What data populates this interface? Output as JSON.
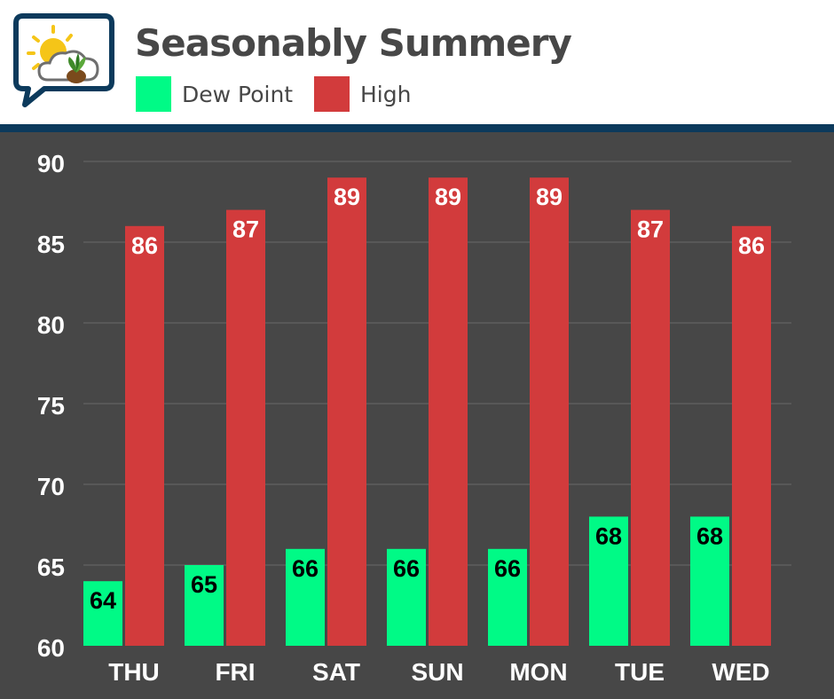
{
  "title": "Seasonably Summery",
  "logo_icon": "weather-sun-cloud-leaf-icon",
  "colors": {
    "dew_point": "#00fa86",
    "high": "#d23b3c",
    "background": "#474747",
    "header_rule": "#0c3a5c",
    "gridline": "#6a6a6a"
  },
  "legend": [
    {
      "label": "Dew Point"
    },
    {
      "label": "High"
    }
  ],
  "chart_data": {
    "type": "bar",
    "categories": [
      "THU",
      "FRI",
      "SAT",
      "SUN",
      "MON",
      "TUE",
      "WED"
    ],
    "series": [
      {
        "name": "Dew Point",
        "values": [
          64,
          65,
          66,
          66,
          66,
          68,
          68
        ]
      },
      {
        "name": "High",
        "values": [
          86,
          87,
          89,
          89,
          89,
          87,
          86
        ]
      }
    ],
    "yticks": [
      60,
      65,
      70,
      75,
      80,
      85,
      90
    ],
    "ylim": [
      60,
      90
    ],
    "grid": true,
    "legend_position": "top",
    "data_labels": true
  }
}
